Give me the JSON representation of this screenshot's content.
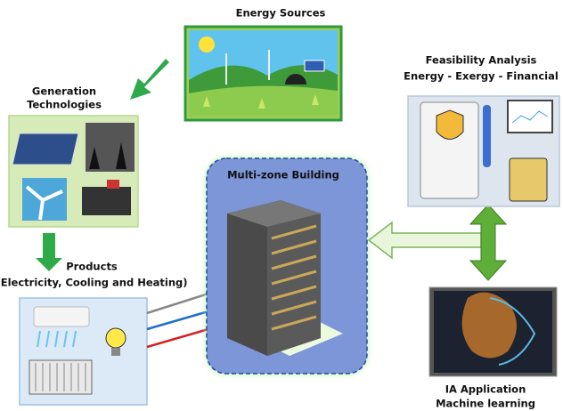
{
  "nodes": [
    {
      "title": "Energy Sources"
    },
    {
      "title_lines": [
        "Generation",
        "Technologies"
      ]
    },
    {
      "title": "Products",
      "subtitle": "(Electricity, Cooling and Heating)"
    },
    {
      "title": "Multi-zone Building"
    },
    {
      "title": "Feasibility Analysis",
      "subtitle": "Energy - Exergy - Financial"
    },
    {
      "title": "IA Application",
      "subtitle": "Machine learning"
    }
  ]
}
